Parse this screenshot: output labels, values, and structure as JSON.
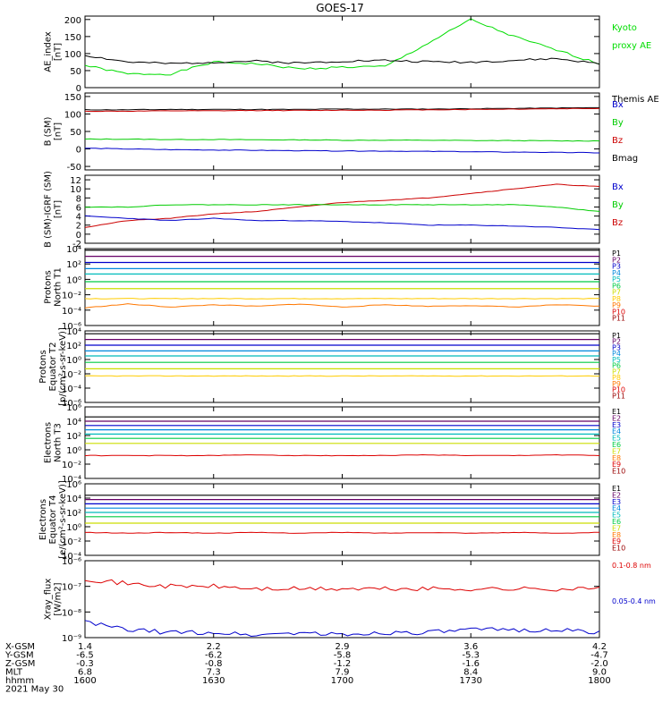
{
  "title": "GOES-17",
  "panels": [
    {
      "id": "ae",
      "ylabel": [
        "AE_index",
        "[nT]"
      ],
      "scale": "linear",
      "ylim": [
        0,
        210
      ],
      "ticks": [
        {
          "v": 0,
          "t": "0"
        },
        {
          "v": 50,
          "t": "50"
        },
        {
          "v": 100,
          "t": "100"
        },
        {
          "v": 150,
          "t": "150"
        },
        {
          "v": 200,
          "t": "200"
        }
      ],
      "legend": [
        {
          "t": "Kyoto",
          "c": "#00dd00"
        },
        {
          "t": "proxy AE",
          "c": "#00dd00"
        },
        {
          "t": "",
          "c": "#000"
        },
        {
          "t": "",
          "c": "#000"
        },
        {
          "t": "Themis AE",
          "c": "#000000"
        }
      ]
    },
    {
      "id": "bsm",
      "ylabel": [
        "B (SM)",
        "[nT]"
      ],
      "scale": "linear",
      "ylim": [
        -60,
        160
      ],
      "ticks": [
        {
          "v": -50,
          "t": "-50"
        },
        {
          "v": 0,
          "t": "0"
        },
        {
          "v": 50,
          "t": "50"
        },
        {
          "v": 100,
          "t": "100"
        },
        {
          "v": 150,
          "t": "150"
        }
      ],
      "legend": [
        {
          "t": "Bx",
          "c": "#0000cc"
        },
        {
          "t": "By",
          "c": "#00cc00"
        },
        {
          "t": "Bz",
          "c": "#cc0000"
        },
        {
          "t": "Bmag",
          "c": "#000000"
        }
      ]
    },
    {
      "id": "bigrf",
      "ylabel": [
        "B (SM)-IGRF (SM)",
        "[nT]"
      ],
      "scale": "linear",
      "ylim": [
        -2,
        13
      ],
      "ticks": [
        {
          "v": -2,
          "t": "-2"
        },
        {
          "v": 0,
          "t": "0"
        },
        {
          "v": 2,
          "t": "2"
        },
        {
          "v": 4,
          "t": "4"
        },
        {
          "v": 6,
          "t": "6"
        },
        {
          "v": 8,
          "t": "8"
        },
        {
          "v": 10,
          "t": "10"
        },
        {
          "v": 12,
          "t": "12"
        }
      ],
      "legend": [
        {
          "t": "Bx",
          "c": "#0000cc"
        },
        {
          "t": "By",
          "c": "#00cc00"
        },
        {
          "t": "Bz",
          "c": "#cc0000"
        }
      ]
    },
    {
      "id": "pn",
      "ylabel": [
        "Protons",
        "North T1"
      ],
      "scale": "log",
      "ylim": [
        -6,
        4
      ],
      "ticks": [
        {
          "v": 4,
          "t": "10⁴"
        },
        {
          "v": 2,
          "t": "10²"
        },
        {
          "v": 0,
          "t": "10⁰"
        },
        {
          "v": -2,
          "t": "10⁻²"
        },
        {
          "v": -4,
          "t": "10⁻⁴"
        },
        {
          "v": -6,
          "t": "10⁻⁶"
        }
      ],
      "legend": [
        {
          "t": "P1",
          "c": "#000000"
        },
        {
          "t": "P2",
          "c": "#660066"
        },
        {
          "t": "P3",
          "c": "#0000cc"
        },
        {
          "t": "P4",
          "c": "#0088dd"
        },
        {
          "t": "P5",
          "c": "#00bbbb"
        },
        {
          "t": "P6",
          "c": "#00cc44"
        },
        {
          "t": "P7",
          "c": "#ccdd00"
        },
        {
          "t": "P8",
          "c": "#ffcc00"
        },
        {
          "t": "P9",
          "c": "#ff7700"
        },
        {
          "t": "P10",
          "c": "#dd0000"
        },
        {
          "t": "P11",
          "c": "#990000"
        }
      ]
    },
    {
      "id": "pe",
      "ylabel": [
        "Protons",
        "Equator T2",
        "[p/(cm²-s-sr-keV)]"
      ],
      "scale": "log",
      "ylim": [
        -6,
        4
      ],
      "ticks": [
        {
          "v": 4,
          "t": "10⁴"
        },
        {
          "v": 2,
          "t": "10²"
        },
        {
          "v": 0,
          "t": "10⁰"
        },
        {
          "v": -2,
          "t": "10⁻²"
        },
        {
          "v": -4,
          "t": "10⁻⁴"
        },
        {
          "v": -6,
          "t": "10⁻⁶"
        }
      ],
      "legend": [
        {
          "t": "P1",
          "c": "#000000"
        },
        {
          "t": "P2",
          "c": "#660066"
        },
        {
          "t": "P3",
          "c": "#0000cc"
        },
        {
          "t": "P4",
          "c": "#0088dd"
        },
        {
          "t": "P5",
          "c": "#00bbbb"
        },
        {
          "t": "P6",
          "c": "#00cc44"
        },
        {
          "t": "P7",
          "c": "#ccdd00"
        },
        {
          "t": "P8",
          "c": "#ffcc00"
        },
        {
          "t": "P9",
          "c": "#ff7700"
        },
        {
          "t": "P10",
          "c": "#dd0000"
        },
        {
          "t": "P11",
          "c": "#990000"
        }
      ]
    },
    {
      "id": "en",
      "ylabel": [
        "Electrons",
        "North T3"
      ],
      "scale": "log",
      "ylim": [
        -4,
        6
      ],
      "ticks": [
        {
          "v": 6,
          "t": "10⁶"
        },
        {
          "v": 4,
          "t": "10⁴"
        },
        {
          "v": 2,
          "t": "10²"
        },
        {
          "v": 0,
          "t": "10⁰"
        },
        {
          "v": -2,
          "t": "10⁻²"
        },
        {
          "v": -4,
          "t": "10⁻⁴"
        }
      ],
      "legend": [
        {
          "t": "E1",
          "c": "#000000"
        },
        {
          "t": "E2",
          "c": "#660066"
        },
        {
          "t": "E3",
          "c": "#0000cc"
        },
        {
          "t": "E4",
          "c": "#0088dd"
        },
        {
          "t": "E5",
          "c": "#00bbbb"
        },
        {
          "t": "E6",
          "c": "#00cc44"
        },
        {
          "t": "E7",
          "c": "#ccdd00"
        },
        {
          "t": "E8",
          "c": "#ff7700"
        },
        {
          "t": "E9",
          "c": "#dd0000"
        },
        {
          "t": "E10",
          "c": "#990000"
        }
      ]
    },
    {
      "id": "ee",
      "ylabel": [
        "Electrons",
        "Equator T4",
        "[e/(cm²-s-sr-keV)]"
      ],
      "scale": "log",
      "ylim": [
        -4,
        6
      ],
      "ticks": [
        {
          "v": 6,
          "t": "10⁶"
        },
        {
          "v": 4,
          "t": "10⁴"
        },
        {
          "v": 2,
          "t": "10²"
        },
        {
          "v": 0,
          "t": "10⁰"
        },
        {
          "v": -2,
          "t": "10⁻²"
        },
        {
          "v": -4,
          "t": "10⁻⁴"
        }
      ],
      "legend": [
        {
          "t": "E1",
          "c": "#000000"
        },
        {
          "t": "E2",
          "c": "#660066"
        },
        {
          "t": "E3",
          "c": "#0000cc"
        },
        {
          "t": "E4",
          "c": "#0088dd"
        },
        {
          "t": "E5",
          "c": "#00bbbb"
        },
        {
          "t": "E6",
          "c": "#00cc44"
        },
        {
          "t": "E7",
          "c": "#ccdd00"
        },
        {
          "t": "E8",
          "c": "#ff7700"
        },
        {
          "t": "E9",
          "c": "#dd0000"
        },
        {
          "t": "E10",
          "c": "#990000"
        }
      ]
    },
    {
      "id": "xray",
      "ylabel": [
        "Xray_flux",
        "[W/m2]"
      ],
      "scale": "log",
      "ylim": [
        -9,
        -6
      ],
      "ticks": [
        {
          "v": -6,
          "t": "10⁻⁶"
        },
        {
          "v": -7,
          "t": "10⁻⁷"
        },
        {
          "v": -8,
          "t": "10⁻⁸"
        },
        {
          "v": -9,
          "t": "10⁻⁹"
        }
      ],
      "legend": [
        {
          "t": "0.1-0.8 nm",
          "c": "#dd0000"
        },
        {
          "t": "0.05-0.4 nm",
          "c": "#0000cc"
        }
      ]
    }
  ],
  "chart_data": {
    "type": "line",
    "title": "GOES-17",
    "x_hhmm": [
      1600,
      1610,
      1620,
      1630,
      1640,
      1650,
      1700,
      1710,
      1720,
      1730,
      1740,
      1750,
      1800
    ],
    "series": [
      {
        "panel": "ae",
        "name": "Kyoto proxy AE",
        "color": "#00dd00",
        "y": [
          65,
          40,
          40,
          75,
          70,
          55,
          60,
          62,
          130,
          200,
          150,
          110,
          70
        ]
      },
      {
        "panel": "ae",
        "name": "Themis AE",
        "color": "#000000",
        "y": [
          95,
          75,
          70,
          75,
          78,
          72,
          78,
          80,
          76,
          75,
          80,
          85,
          70
        ]
      },
      {
        "panel": "bsm",
        "name": "Bmag",
        "color": "#000000",
        "y": [
          112,
          112,
          113,
          113,
          113,
          113,
          114,
          114,
          114,
          115,
          116,
          117,
          118
        ]
      },
      {
        "panel": "bsm",
        "name": "Bz",
        "color": "#cc0000",
        "y": [
          108,
          108,
          109,
          109,
          110,
          110,
          111,
          111,
          112,
          113,
          114,
          115,
          116
        ]
      },
      {
        "panel": "bsm",
        "name": "By",
        "color": "#00cc00",
        "y": [
          28,
          28,
          27,
          27,
          26,
          26,
          25,
          25,
          25,
          24,
          24,
          23,
          23
        ]
      },
      {
        "panel": "bsm",
        "name": "Bx",
        "color": "#0000cc",
        "y": [
          2,
          0,
          -2,
          -3,
          -4,
          -5,
          -6,
          -6,
          -7,
          -8,
          -9,
          -10,
          -11
        ]
      },
      {
        "panel": "bigrf",
        "name": "Bz",
        "color": "#cc0000",
        "y": [
          1.5,
          3,
          3.5,
          4.5,
          5,
          6,
          7,
          7.5,
          8,
          9,
          10,
          11,
          10.5
        ]
      },
      {
        "panel": "bigrf",
        "name": "By",
        "color": "#00cc00",
        "y": [
          6,
          6,
          6.5,
          6.5,
          6.5,
          6.5,
          6.5,
          6.5,
          6.5,
          6.5,
          6.5,
          6,
          5
        ]
      },
      {
        "panel": "bigrf",
        "name": "Bx",
        "color": "#0000cc",
        "y": [
          4,
          3.5,
          3,
          3.5,
          3,
          3,
          2.8,
          2.5,
          2,
          2,
          1.8,
          1.5,
          1
        ]
      },
      {
        "panel": "pn",
        "name": "P1-P7",
        "levels": [
          3.8,
          3.0,
          2.2,
          1.4,
          0.7,
          -0.3,
          -1.2
        ]
      },
      {
        "panel": "pn",
        "name": "P8",
        "y": [
          -2.5,
          -2.5,
          -2.5,
          -2.5,
          -2.5,
          -2.5,
          -2.5,
          -2.5,
          -2.5,
          -2.5,
          -2.5,
          -2.5,
          -2.5
        ]
      },
      {
        "panel": "pn",
        "name": "P9",
        "y": [
          -3.7,
          -3.2,
          -3.6,
          -3.3,
          -3.5,
          -3.2,
          -3.6,
          -3.3,
          -3.5,
          -3.4,
          -3.6,
          -3.3,
          -3.5
        ]
      },
      {
        "panel": "pe",
        "name": "P1-P7",
        "levels": [
          3.6,
          2.8,
          2.0,
          1.2,
          0.5,
          -0.4,
          -1.3
        ]
      },
      {
        "panel": "pe",
        "name": "P8",
        "y": [
          -2.3,
          -2.3,
          -2.3,
          -2.3,
          -2.3,
          -2.3,
          -2.3,
          -2.3,
          -2.3,
          -2.3,
          -2.3,
          -2.3,
          -2.3
        ]
      },
      {
        "panel": "en",
        "name": "E1-E7",
        "levels": [
          4.6,
          4.0,
          3.4,
          2.8,
          2.2,
          1.6,
          0.9
        ]
      },
      {
        "panel": "en",
        "name": "E9",
        "y": [
          -0.8,
          -0.8,
          -0.8,
          -0.8,
          -0.7,
          -0.8,
          -0.8,
          -0.8,
          -0.7,
          -0.8,
          -0.8,
          -0.7,
          -0.8
        ]
      },
      {
        "panel": "ee",
        "name": "E1-E7",
        "levels": [
          4.4,
          3.8,
          3.2,
          2.6,
          2.0,
          1.4,
          0.5
        ]
      },
      {
        "panel": "ee",
        "name": "E9",
        "y": [
          -0.8,
          -0.9,
          -0.8,
          -0.9,
          -0.8,
          -0.9,
          -0.8,
          -0.9,
          -0.8,
          -0.9,
          -0.8,
          -0.9,
          -0.8
        ]
      },
      {
        "panel": "xray",
        "name": "0.1-0.8 nm",
        "color": "#dd0000",
        "y": [
          -6.7,
          -6.9,
          -7.0,
          -7.0,
          -7.1,
          -7.1,
          -7.1,
          -7.1,
          -7.1,
          -7.1,
          -7.1,
          -7.1,
          -7.1
        ]
      },
      {
        "panel": "xray",
        "name": "0.05-0.4 nm",
        "color": "#0000cc",
        "y": [
          -8.4,
          -8.7,
          -8.8,
          -8.8,
          -8.9,
          -8.8,
          -8.9,
          -8.8,
          -8.8,
          -8.7,
          -8.7,
          -8.7,
          -8.8
        ]
      }
    ]
  },
  "xaxis": {
    "rows": [
      "X-GSM",
      "Y-GSM",
      "Z-GSM",
      "MLT",
      "hhmm",
      "2021 May 30"
    ],
    "ticks": [
      {
        "vals": [
          "1.4",
          "-6.5",
          "-0.3",
          "6.8",
          "1600"
        ]
      },
      {
        "vals": [
          "2.2",
          "-6.2",
          "-0.8",
          "7.3",
          "1630"
        ]
      },
      {
        "vals": [
          "2.9",
          "-5.8",
          "-1.2",
          "7.9",
          "1700"
        ]
      },
      {
        "vals": [
          "3.6",
          "-5.3",
          "-1.6",
          "8.4",
          "1730"
        ]
      },
      {
        "vals": [
          "4.2",
          "-4.7",
          "-2.0",
          "9.0",
          "1800"
        ]
      }
    ]
  }
}
